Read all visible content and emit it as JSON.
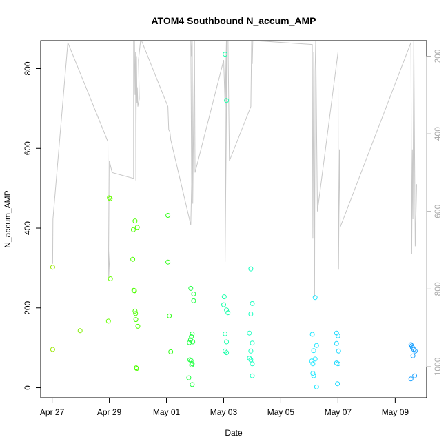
{
  "chart_data": {
    "type": "scatter",
    "title": "ATOM4 Southbound N_accum_AMP",
    "xlabel": "Date",
    "ylabel": "N_accum_AMP",
    "x_unit": "days since Apr 27",
    "xlim": [
      -0.4,
      13.1
    ],
    "ylim": [
      -25,
      870
    ],
    "x_ticks": [
      {
        "value": 0,
        "label": "Apr 27"
      },
      {
        "value": 2,
        "label": "Apr 29"
      },
      {
        "value": 4,
        "label": "May 01"
      },
      {
        "value": 6,
        "label": "May 03"
      },
      {
        "value": 8,
        "label": "May 05"
      },
      {
        "value": 10,
        "label": "May 07"
      },
      {
        "value": 12,
        "label": "May 09"
      }
    ],
    "y_ticks": [
      0,
      200,
      400,
      600,
      800
    ],
    "right_axis": {
      "description": "secondary axis (reversed) for the grey line series",
      "ticks": [
        200,
        400,
        600,
        800,
        1000
      ],
      "ylim": [
        1080,
        160
      ],
      "color": "#aaaaaa"
    },
    "series": [
      {
        "name": "N_accum_AMP points",
        "kind": "points",
        "axis": "left",
        "color_scale": "green to blue over time",
        "points": [
          {
            "x": 0.02,
            "y": 302,
            "color": "#99e600"
          },
          {
            "x": 0.02,
            "y": 96,
            "color": "#99e600"
          },
          {
            "x": 0.98,
            "y": 143,
            "color": "#80ee00"
          },
          {
            "x": 1.97,
            "y": 167,
            "color": "#66ff00"
          },
          {
            "x": 2.0,
            "y": 476,
            "color": "#66ff00"
          },
          {
            "x": 2.03,
            "y": 474,
            "color": "#66ff00"
          },
          {
            "x": 2.04,
            "y": 273,
            "color": "#66ff00"
          },
          {
            "x": 2.82,
            "y": 322,
            "color": "#4dff00"
          },
          {
            "x": 2.84,
            "y": 396,
            "color": "#4dff00"
          },
          {
            "x": 2.86,
            "y": 244,
            "color": "#4dff00"
          },
          {
            "x": 2.88,
            "y": 243,
            "color": "#4dff00"
          },
          {
            "x": 2.9,
            "y": 418,
            "color": "#4dff00"
          },
          {
            "x": 2.9,
            "y": 192,
            "color": "#4dff00"
          },
          {
            "x": 2.92,
            "y": 186,
            "color": "#4dff00"
          },
          {
            "x": 2.93,
            "y": 171,
            "color": "#4dff00"
          },
          {
            "x": 2.94,
            "y": 50,
            "color": "#4dff00"
          },
          {
            "x": 2.96,
            "y": 48,
            "color": "#4dff00"
          },
          {
            "x": 2.98,
            "y": 402,
            "color": "#4dff00"
          },
          {
            "x": 3.0,
            "y": 154,
            "color": "#4dff00"
          },
          {
            "x": 4.05,
            "y": 432,
            "color": "#33ff1a"
          },
          {
            "x": 4.05,
            "y": 315,
            "color": "#33ff1a"
          },
          {
            "x": 4.1,
            "y": 180,
            "color": "#33ff1a"
          },
          {
            "x": 4.15,
            "y": 90,
            "color": "#33ff1a"
          },
          {
            "x": 4.85,
            "y": 249,
            "color": "#22ff44"
          },
          {
            "x": 4.8,
            "y": 113,
            "color": "#22ff44"
          },
          {
            "x": 4.82,
            "y": 70,
            "color": "#22ff44"
          },
          {
            "x": 4.84,
            "y": 120,
            "color": "#22ff44"
          },
          {
            "x": 4.86,
            "y": 68,
            "color": "#22ff44"
          },
          {
            "x": 4.87,
            "y": 128,
            "color": "#22ff44"
          },
          {
            "x": 4.88,
            "y": 57,
            "color": "#22ff44"
          },
          {
            "x": 4.9,
            "y": 135,
            "color": "#22ff44"
          },
          {
            "x": 4.9,
            "y": 60,
            "color": "#22ff44"
          },
          {
            "x": 4.92,
            "y": 115,
            "color": "#22ff44"
          },
          {
            "x": 4.95,
            "y": 235,
            "color": "#22ff44"
          },
          {
            "x": 4.95,
            "y": 218,
            "color": "#22ff44"
          },
          {
            "x": 4.78,
            "y": 25,
            "color": "#22ff44"
          },
          {
            "x": 4.9,
            "y": 8,
            "color": "#22ff44"
          },
          {
            "x": 6.05,
            "y": 836,
            "color": "#1affaa"
          },
          {
            "x": 6.1,
            "y": 720,
            "color": "#1affaa"
          },
          {
            "x": 6.02,
            "y": 228,
            "color": "#1affaa"
          },
          {
            "x": 6.0,
            "y": 208,
            "color": "#1affaa"
          },
          {
            "x": 6.1,
            "y": 195,
            "color": "#1affaa"
          },
          {
            "x": 6.15,
            "y": 188,
            "color": "#1affaa"
          },
          {
            "x": 6.05,
            "y": 135,
            "color": "#1affaa"
          },
          {
            "x": 6.1,
            "y": 115,
            "color": "#1affaa"
          },
          {
            "x": 6.05,
            "y": 92,
            "color": "#1affaa"
          },
          {
            "x": 6.1,
            "y": 88,
            "color": "#1affaa"
          },
          {
            "x": 6.95,
            "y": 298,
            "color": "#1affc0"
          },
          {
            "x": 7.0,
            "y": 211,
            "color": "#1affc0"
          },
          {
            "x": 6.95,
            "y": 185,
            "color": "#1affc0"
          },
          {
            "x": 6.9,
            "y": 137,
            "color": "#1affc0"
          },
          {
            "x": 7.0,
            "y": 112,
            "color": "#1affc0"
          },
          {
            "x": 6.95,
            "y": 92,
            "color": "#1affc0"
          },
          {
            "x": 6.9,
            "y": 74,
            "color": "#1affc0"
          },
          {
            "x": 6.95,
            "y": 70,
            "color": "#1affc0"
          },
          {
            "x": 7.0,
            "y": 60,
            "color": "#1affc0"
          },
          {
            "x": 7.0,
            "y": 30,
            "color": "#1affc0"
          },
          {
            "x": 9.2,
            "y": 226,
            "color": "#1ae6ff"
          },
          {
            "x": 9.1,
            "y": 134,
            "color": "#1ae6ff"
          },
          {
            "x": 9.25,
            "y": 106,
            "color": "#1ae6ff"
          },
          {
            "x": 9.15,
            "y": 93,
            "color": "#1ae6ff"
          },
          {
            "x": 9.2,
            "y": 72,
            "color": "#1ae6ff"
          },
          {
            "x": 9.08,
            "y": 67,
            "color": "#1ae6ff"
          },
          {
            "x": 9.12,
            "y": 60,
            "color": "#1ae6ff"
          },
          {
            "x": 9.12,
            "y": 36,
            "color": "#1ae6ff"
          },
          {
            "x": 9.15,
            "y": 30,
            "color": "#1ae6ff"
          },
          {
            "x": 9.25,
            "y": 2,
            "color": "#1ae6ff"
          },
          {
            "x": 9.95,
            "y": 137,
            "color": "#1ad9ff"
          },
          {
            "x": 10.0,
            "y": 130,
            "color": "#1ad9ff"
          },
          {
            "x": 9.95,
            "y": 111,
            "color": "#1ad9ff"
          },
          {
            "x": 10.02,
            "y": 92,
            "color": "#1ad9ff"
          },
          {
            "x": 9.95,
            "y": 62,
            "color": "#1ad9ff"
          },
          {
            "x": 10.0,
            "y": 60,
            "color": "#1ad9ff"
          },
          {
            "x": 9.98,
            "y": 10,
            "color": "#1ad9ff"
          },
          {
            "x": 12.55,
            "y": 108,
            "color": "#1aa0ff"
          },
          {
            "x": 12.58,
            "y": 105,
            "color": "#1aa0ff"
          },
          {
            "x": 12.6,
            "y": 101,
            "color": "#1aa0ff"
          },
          {
            "x": 12.65,
            "y": 96,
            "color": "#1aa0ff"
          },
          {
            "x": 12.62,
            "y": 80,
            "color": "#1aa0ff"
          },
          {
            "x": 12.7,
            "y": 92,
            "color": "#1aa0ff"
          },
          {
            "x": 12.55,
            "y": 22,
            "color": "#1aa0ff"
          },
          {
            "x": 12.68,
            "y": 30,
            "color": "#1aa0ff"
          }
        ]
      },
      {
        "name": "secondary line",
        "kind": "line",
        "axis": "right",
        "color": "#c8c8c8",
        "x": [
          0.02,
          0.03,
          0.55,
          1.95,
          1.98,
          2.02,
          2.0,
          2.1,
          2.85,
          2.85,
          2.88,
          2.9,
          2.92,
          2.93,
          2.95,
          2.97,
          2.98,
          3.0,
          3.05,
          3.02,
          3.1,
          4.05,
          4.08,
          4.12,
          4.15,
          4.85,
          4.88,
          4.85,
          4.88,
          4.9,
          4.92,
          4.95,
          4.98,
          5.0,
          6.0,
          6.05,
          6.1,
          6.05,
          6.12,
          6.15,
          6.2,
          6.95,
          6.98,
          7.0,
          7.02,
          7.05,
          7.08,
          9.1,
          9.12,
          9.15,
          9.18,
          9.2,
          9.22,
          9.28,
          10.0,
          10.02,
          10.05,
          10.08,
          12.55,
          12.58,
          12.6,
          12.62,
          12.65,
          12.7,
          12.75
        ],
        "y": [
          735,
          620,
          165,
          420,
          770,
          700,
          470,
          500,
          515,
          155,
          155,
          300,
          190,
          520,
          200,
          320,
          280,
          330,
          310,
          210,
          155,
          330,
          390,
          395,
          415,
          635,
          530,
          150,
          200,
          150,
          580,
          350,
          150,
          500,
          210,
          330,
          150,
          730,
          160,
          140,
          470,
          330,
          150,
          220,
          160,
          150,
          160,
          170,
          670,
          190,
          820,
          240,
          150,
          600,
          190,
          750,
          440,
          640,
          165,
          710,
          440,
          620,
          145,
          690,
          530
        ]
      }
    ]
  }
}
